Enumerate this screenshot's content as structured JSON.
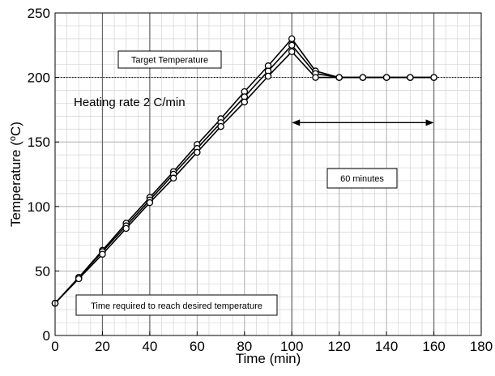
{
  "chart_data": {
    "type": "line",
    "xlabel": "Time (min)",
    "ylabel_main": "Temperature (",
    "ylabel_sup": "o",
    "ylabel_end": "C)",
    "xlim": [
      0,
      180
    ],
    "ylim": [
      0,
      250
    ],
    "xticks": [
      0,
      20,
      40,
      60,
      80,
      100,
      120,
      140,
      160,
      180
    ],
    "yticks": [
      0,
      50,
      100,
      150,
      200,
      250
    ],
    "minor_grid_step_x": 5,
    "minor_grid_step_y": 10,
    "major_vertical_lines": [
      20,
      40,
      100,
      160
    ],
    "grid": true,
    "marker": "open-circle",
    "series": [
      {
        "x": [
          0,
          10,
          20,
          30,
          40,
          50,
          60,
          70,
          80,
          90,
          100,
          110,
          120,
          130,
          140,
          150,
          160
        ],
        "y": [
          25,
          45,
          66,
          87,
          107,
          127,
          148,
          168,
          189,
          209,
          230,
          205,
          200,
          200,
          200,
          200,
          200
        ]
      },
      {
        "x": [
          0,
          10,
          20,
          30,
          40,
          50,
          60,
          70,
          80,
          90,
          100,
          110,
          120,
          130,
          140,
          150,
          160
        ],
        "y": [
          25,
          45,
          65,
          85,
          105,
          125,
          145,
          165,
          185,
          205,
          225,
          203,
          200,
          200,
          200,
          200,
          200
        ]
      },
      {
        "x": [
          0,
          10,
          20,
          30,
          40,
          50,
          60,
          70,
          80,
          90,
          100,
          110,
          120,
          130,
          140,
          150,
          160
        ],
        "y": [
          25,
          44,
          63,
          83,
          103,
          122,
          142,
          162,
          181,
          201,
          220,
          200,
          200,
          200,
          200,
          200,
          200
        ]
      }
    ],
    "reference_line": {
      "y": 200,
      "style": "dotted"
    },
    "annotations": {
      "target_label": "Target Temperature",
      "heating_rate": "Heating rate 2 C/min",
      "duration_label": "60 minutes",
      "duration_arrow": {
        "x_start": 100,
        "x_end": 160,
        "y": 165
      },
      "time_required_label": "Time required to reach desired temperature"
    }
  }
}
